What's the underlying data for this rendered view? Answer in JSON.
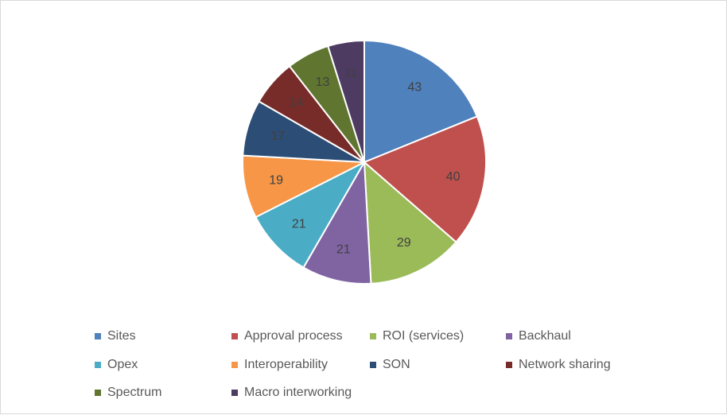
{
  "chart_data": {
    "type": "pie",
    "title": "",
    "legend_position": "bottom",
    "categories": [
      "Sites",
      "Approval process",
      "ROI (services)",
      "Backhaul",
      "Opex",
      "Interoperability",
      "SON",
      "Network sharing",
      "Spectrum",
      "Macro interworking"
    ],
    "values": [
      43,
      40,
      29,
      21,
      21,
      19,
      17,
      14,
      13,
      11
    ],
    "colors": [
      "#4F81BD",
      "#C0504D",
      "#9BBB59",
      "#8064A2",
      "#4BACC6",
      "#F79646",
      "#2C4D75",
      "#772C2A",
      "#5F7530",
      "#4D3B62"
    ],
    "data_labels": [
      "43",
      "40",
      "29",
      "21",
      "21",
      "19",
      "17",
      "14",
      "13",
      "11"
    ]
  }
}
